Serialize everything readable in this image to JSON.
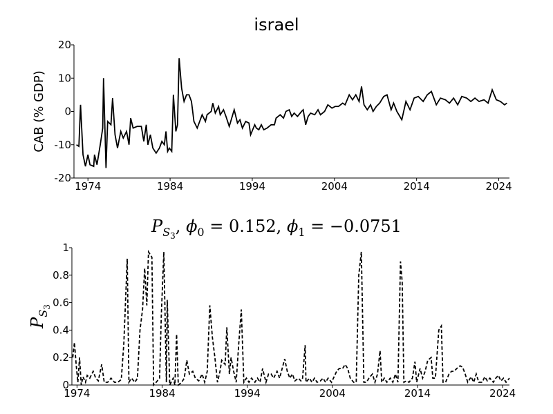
{
  "chart_data": [
    {
      "type": "line",
      "title": "israel",
      "ylabel": "CAB (% GDP)",
      "color": "#000000",
      "linestyle": "solid",
      "xlim": [
        1972.3,
        2025.3
      ],
      "xticks": [
        1974,
        1984,
        1994,
        2004,
        2014,
        2024
      ],
      "ylim": [
        -20,
        20
      ],
      "yticks": [
        -20,
        -10,
        0,
        10,
        20
      ],
      "x": [
        1972.6,
        1972.9,
        1973.1,
        1973.4,
        1973.7,
        1974,
        1974.25,
        1974.7,
        1974.8,
        1975.1,
        1975.5,
        1975.8,
        1975.9,
        1976.2,
        1976.4,
        1976.8,
        1977,
        1977.3,
        1977.6,
        1978,
        1978.3,
        1978.7,
        1979,
        1979.2,
        1979.5,
        1980,
        1980.5,
        1980.8,
        1981.1,
        1981.3,
        1981.6,
        1981.9,
        1982.3,
        1982.7,
        1983,
        1983.3,
        1983.5,
        1983.7,
        1983.9,
        1984.2,
        1984.4,
        1984.7,
        1984.9,
        1985.1,
        1985.4,
        1985.7,
        1986,
        1986.3,
        1986.6,
        1986.9,
        1987.3,
        1987.6,
        1987.9,
        1988.3,
        1988.5,
        1989,
        1989.2,
        1989.5,
        1989.9,
        1990.1,
        1990.5,
        1990.8,
        1991.2,
        1991.5,
        1991.8,
        1992.2,
        1992.5,
        1992.8,
        1993.2,
        1993.6,
        1993.8,
        1994.3,
        1994.5,
        1994.8,
        1995.1,
        1995.4,
        1995.8,
        1996.3,
        1996.7,
        1996.9,
        1997.4,
        1997.8,
        1998.1,
        1998.5,
        1998.8,
        1999.1,
        1999.5,
        2000,
        2000.2,
        2000.5,
        2000.8,
        2001.1,
        2001.6,
        2002,
        2002.3,
        2002.8,
        2003.2,
        2003.7,
        2004.1,
        2004.5,
        2005,
        2005.3,
        2005.8,
        2006.2,
        2006.6,
        2007,
        2007.3,
        2007.6,
        2008,
        2008.4,
        2008.7,
        2009.1,
        2009.5,
        2010,
        2010.4,
        2010.9,
        2011.2,
        2011.6,
        2012.2,
        2012.7,
        2013.2,
        2013.7,
        2014.2,
        2014.8,
        2015.3,
        2015.8,
        2016.4,
        2016.9,
        2017.5,
        2018,
        2018.5,
        2019,
        2019.5,
        2020.1,
        2020.6,
        2021.1,
        2021.6,
        2022.2,
        2022.7,
        2023.2,
        2023.7,
        2024.2,
        2024.7,
        2025
      ],
      "values": [
        -10,
        -10.5,
        2,
        -13,
        -16.5,
        -13,
        -16,
        -16.5,
        -13,
        -16,
        -10,
        -5,
        10,
        -17,
        -3,
        -4,
        4,
        -7,
        -11,
        -6,
        -8,
        -6,
        -10,
        -2,
        -5,
        -4.5,
        -4.5,
        -9,
        -4,
        -10,
        -7,
        -11,
        -12.5,
        -11,
        -9,
        -10,
        -6,
        -12,
        -11,
        -12,
        5,
        -6,
        -4,
        16,
        7,
        3,
        5,
        5,
        3,
        -3,
        -5,
        -3,
        -1,
        -3,
        -1,
        0,
        2.5,
        -0.5,
        1.5,
        -1,
        0.5,
        -1.5,
        -4.5,
        -2,
        0.5,
        -3.5,
        -2.5,
        -5,
        -3,
        -3.5,
        -7,
        -4,
        -5,
        -5.5,
        -4,
        -5.5,
        -5,
        -4,
        -4,
        -2,
        -1,
        -2,
        0,
        0.5,
        -1.5,
        -0.5,
        -1.5,
        0,
        0.5,
        -4,
        -1.5,
        -0.5,
        -1,
        0.5,
        -1,
        0,
        2,
        1,
        1.5,
        1.5,
        2.5,
        2,
        5,
        3.5,
        5,
        3,
        7.5,
        2,
        0.5,
        2,
        0,
        1.5,
        2.5,
        4.5,
        5,
        0.5,
        2.5,
        0,
        -2.5,
        3,
        0.5,
        4,
        4.5,
        3,
        5,
        6,
        2,
        4,
        3.5,
        2.5,
        4,
        2,
        4.5,
        4,
        3,
        4,
        3,
        3.5,
        2.5,
        6.5,
        3.5,
        3,
        2,
        2.5
      ]
    },
    {
      "type": "line",
      "title_parts": [
        "P",
        "S",
        "3",
        ", ",
        "ϕ",
        "0",
        " = 0.152, ",
        "ϕ",
        "1",
        " = −0.0751"
      ],
      "ylabel_parts": [
        "P",
        "S",
        "3"
      ],
      "color": "#000000",
      "linestyle": "dashed",
      "xlim": [
        1973.4,
        2024.8
      ],
      "xticks": [
        1974,
        1984,
        1994,
        2004,
        2014,
        2024
      ],
      "ylim": [
        0,
        1
      ],
      "yticks": [
        0,
        0.2,
        0.4,
        0.6,
        0.8,
        1
      ],
      "x": [
        1973.5,
        1973.7,
        1973.9,
        1974.1,
        1974.3,
        1974.5,
        1974.7,
        1975,
        1975.2,
        1975.5,
        1975.9,
        1976.2,
        1976.5,
        1976.9,
        1977.2,
        1977.6,
        1978,
        1978.4,
        1978.8,
        1979.2,
        1979.5,
        1979.9,
        1980.1,
        1980.4,
        1980.8,
        1981.1,
        1981.4,
        1981.7,
        1981.95,
        1982.2,
        1982.4,
        1982.8,
        1983,
        1983.3,
        1983.7,
        1983.9,
        1984.2,
        1984.5,
        1984.6,
        1984.9,
        1985.3,
        1985.5,
        1985.7,
        1985.9,
        1986.3,
        1986.6,
        1986.9,
        1987.2,
        1987.6,
        1987.9,
        1988.3,
        1988.7,
        1989,
        1989.3,
        1989.6,
        1989.9,
        1990.2,
        1990.5,
        1990.8,
        1991,
        1991.4,
        1991.6,
        1991.9,
        1992.1,
        1992.4,
        1992.7,
        1993,
        1993.3,
        1993.6,
        1993.9,
        1994.2,
        1994.5,
        1994.9,
        1995.2,
        1995.5,
        1995.8,
        1996.2,
        1996.5,
        1996.8,
        1997.1,
        1997.5,
        1997.8,
        1998.1,
        1998.4,
        1998.7,
        1999,
        1999.3,
        1999.6,
        2000,
        2000.3,
        2000.5,
        2000.8,
        2000.9,
        2001.3,
        2001.6,
        2001.9,
        2002.2,
        2002.6,
        2002.9,
        2003.2,
        2003.5,
        2003.9,
        2004.2,
        2004.5,
        2004.8,
        2005.2,
        2005.5,
        2005.8,
        2006.1,
        2006.5,
        2006.8,
        2007.1,
        2007.4,
        2007.7,
        2008,
        2008.3,
        2008.7,
        2009,
        2009.3,
        2009.6,
        2009.8,
        2010.1,
        2010.4,
        2010.8,
        2011.1,
        2011.4,
        2011.7,
        2012,
        2012.2,
        2012.4,
        2012.7,
        2013,
        2013.4,
        2013.7,
        2013.9,
        2014.3,
        2014.6,
        2014.9,
        2015.2,
        2015.6,
        2015.8,
        2016.1,
        2016.5,
        2016.8,
        2017,
        2017.3,
        2017.7,
        2018,
        2018.3,
        2018.6,
        2019,
        2019.3,
        2019.6,
        2019.9,
        2020.3,
        2020.6,
        2020.9,
        2021.2,
        2021.6,
        2021.9,
        2022.2,
        2022.5,
        2022.9,
        2023.2,
        2023.5,
        2023.8,
        2024.1,
        2024.4,
        2024.8
      ],
      "values": [
        0.2,
        0.31,
        0.15,
        0.02,
        0.2,
        0,
        0.06,
        0.02,
        0.07,
        0.05,
        0.1,
        0.05,
        0.03,
        0.15,
        0.02,
        0.02,
        0.05,
        0.02,
        0.02,
        0.04,
        0.3,
        0.92,
        0.02,
        0.05,
        0.02,
        0.05,
        0.4,
        0.55,
        0.85,
        0.58,
        0.97,
        0.93,
        0,
        0.02,
        0.05,
        0.5,
        0.97,
        0.02,
        0.62,
        0,
        0.05,
        0,
        0.37,
        0,
        0.02,
        0.05,
        0.18,
        0.08,
        0.1,
        0.05,
        0.03,
        0.08,
        0.02,
        0.1,
        0.58,
        0.35,
        0.2,
        0.02,
        0.1,
        0.18,
        0.15,
        0.42,
        0.08,
        0.2,
        0.1,
        0.02,
        0.3,
        0.55,
        0.02,
        0.05,
        0.02,
        0.05,
        0.02,
        0.05,
        0.02,
        0.12,
        0.02,
        0.08,
        0.08,
        0.05,
        0.1,
        0.05,
        0.12,
        0.19,
        0.1,
        0.05,
        0.08,
        0.03,
        0.05,
        0.03,
        0.05,
        0.29,
        0.02,
        0.05,
        0.02,
        0.05,
        0.02,
        0.03,
        0.05,
        0.02,
        0.05,
        0.02,
        0.06,
        0.1,
        0.12,
        0.12,
        0.15,
        0.12,
        0.05,
        0.02,
        0.02,
        0.8,
        0.97,
        0.02,
        0.02,
        0.05,
        0.08,
        0.02,
        0.08,
        0.25,
        0.02,
        0.05,
        0.02,
        0.05,
        0.02,
        0.08,
        0.02,
        0.9,
        0.75,
        0.02,
        0.03,
        0.02,
        0.05,
        0.17,
        0.02,
        0.12,
        0.05,
        0.1,
        0.18,
        0.2,
        0.05,
        0.05,
        0.4,
        0.43,
        0.02,
        0.02,
        0.08,
        0.1,
        0.1,
        0.12,
        0.14,
        0.13,
        0.08,
        0.02,
        0.06,
        0.02,
        0.08,
        0.02,
        0.02,
        0.06,
        0.03,
        0.05,
        0.02,
        0.05,
        0.07,
        0.03,
        0.05,
        0.02,
        0.05
      ]
    }
  ]
}
